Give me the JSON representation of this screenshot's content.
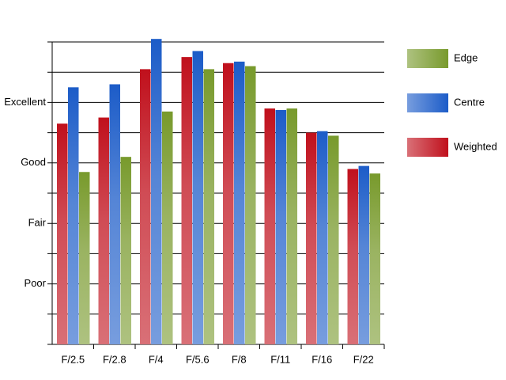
{
  "chart_data": {
    "type": "bar",
    "categories": [
      "F/2.5",
      "F/2.8",
      "F/4",
      "F/5.6",
      "F/8",
      "F/11",
      "F/16",
      "F/22"
    ],
    "series": [
      {
        "name": "Weighted",
        "color": "#c0101c",
        "values": [
          7.3,
          7.5,
          9.1,
          9.5,
          9.3,
          7.8,
          7.0,
          5.8
        ]
      },
      {
        "name": "Centre",
        "color": "#1c5cc8",
        "values": [
          8.5,
          8.6,
          10.1,
          9.7,
          9.35,
          7.75,
          7.05,
          5.9
        ]
      },
      {
        "name": "Edge",
        "color": "#789a2c",
        "values": [
          5.7,
          6.2,
          7.7,
          9.1,
          9.2,
          7.8,
          6.9,
          5.65
        ]
      }
    ],
    "ylim": [
      0,
      10
    ],
    "yticks": [
      {
        "value": 2,
        "label": "Poor"
      },
      {
        "value": 4,
        "label": "Fair"
      },
      {
        "value": 6,
        "label": "Good"
      },
      {
        "value": 8,
        "label": "Excellent"
      }
    ],
    "minor_ticks": [
      0,
      1,
      3,
      5,
      7,
      9,
      10
    ],
    "grid": true,
    "legend": "right"
  }
}
